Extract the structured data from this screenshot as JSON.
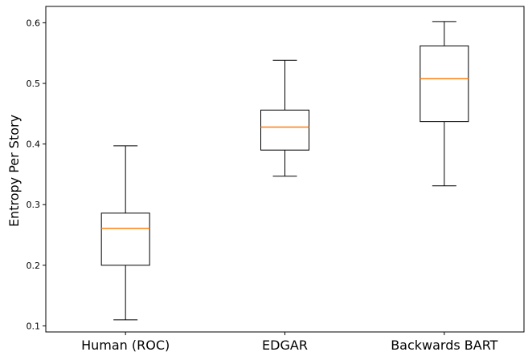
{
  "chart_data": {
    "type": "boxplot",
    "title": "",
    "xlabel": "",
    "ylabel": "Entropy Per Story",
    "ylim": [
      0.09,
      0.627
    ],
    "yticks": [
      0.1,
      0.2,
      0.3,
      0.4,
      0.5,
      0.6
    ],
    "ytick_labels": [
      "0.1",
      "0.2",
      "0.3",
      "0.4",
      "0.5",
      "0.6"
    ],
    "grid": false,
    "categories": [
      "Human (ROC)",
      "EDGAR",
      "Backwards BART"
    ],
    "boxes": [
      {
        "category": "Human (ROC)",
        "whisker_low": 0.11,
        "q1": 0.2,
        "median": 0.261,
        "q3": 0.286,
        "whisker_high": 0.397
      },
      {
        "category": "EDGAR",
        "whisker_low": 0.347,
        "q1": 0.39,
        "median": 0.428,
        "q3": 0.456,
        "whisker_high": 0.538
      },
      {
        "category": "Backwards BART",
        "whisker_low": 0.331,
        "q1": 0.437,
        "median": 0.508,
        "q3": 0.562,
        "whisker_high": 0.602
      }
    ],
    "colors": {
      "box": "#000000",
      "median": "#ff7f0e",
      "axis": "#000000"
    }
  }
}
